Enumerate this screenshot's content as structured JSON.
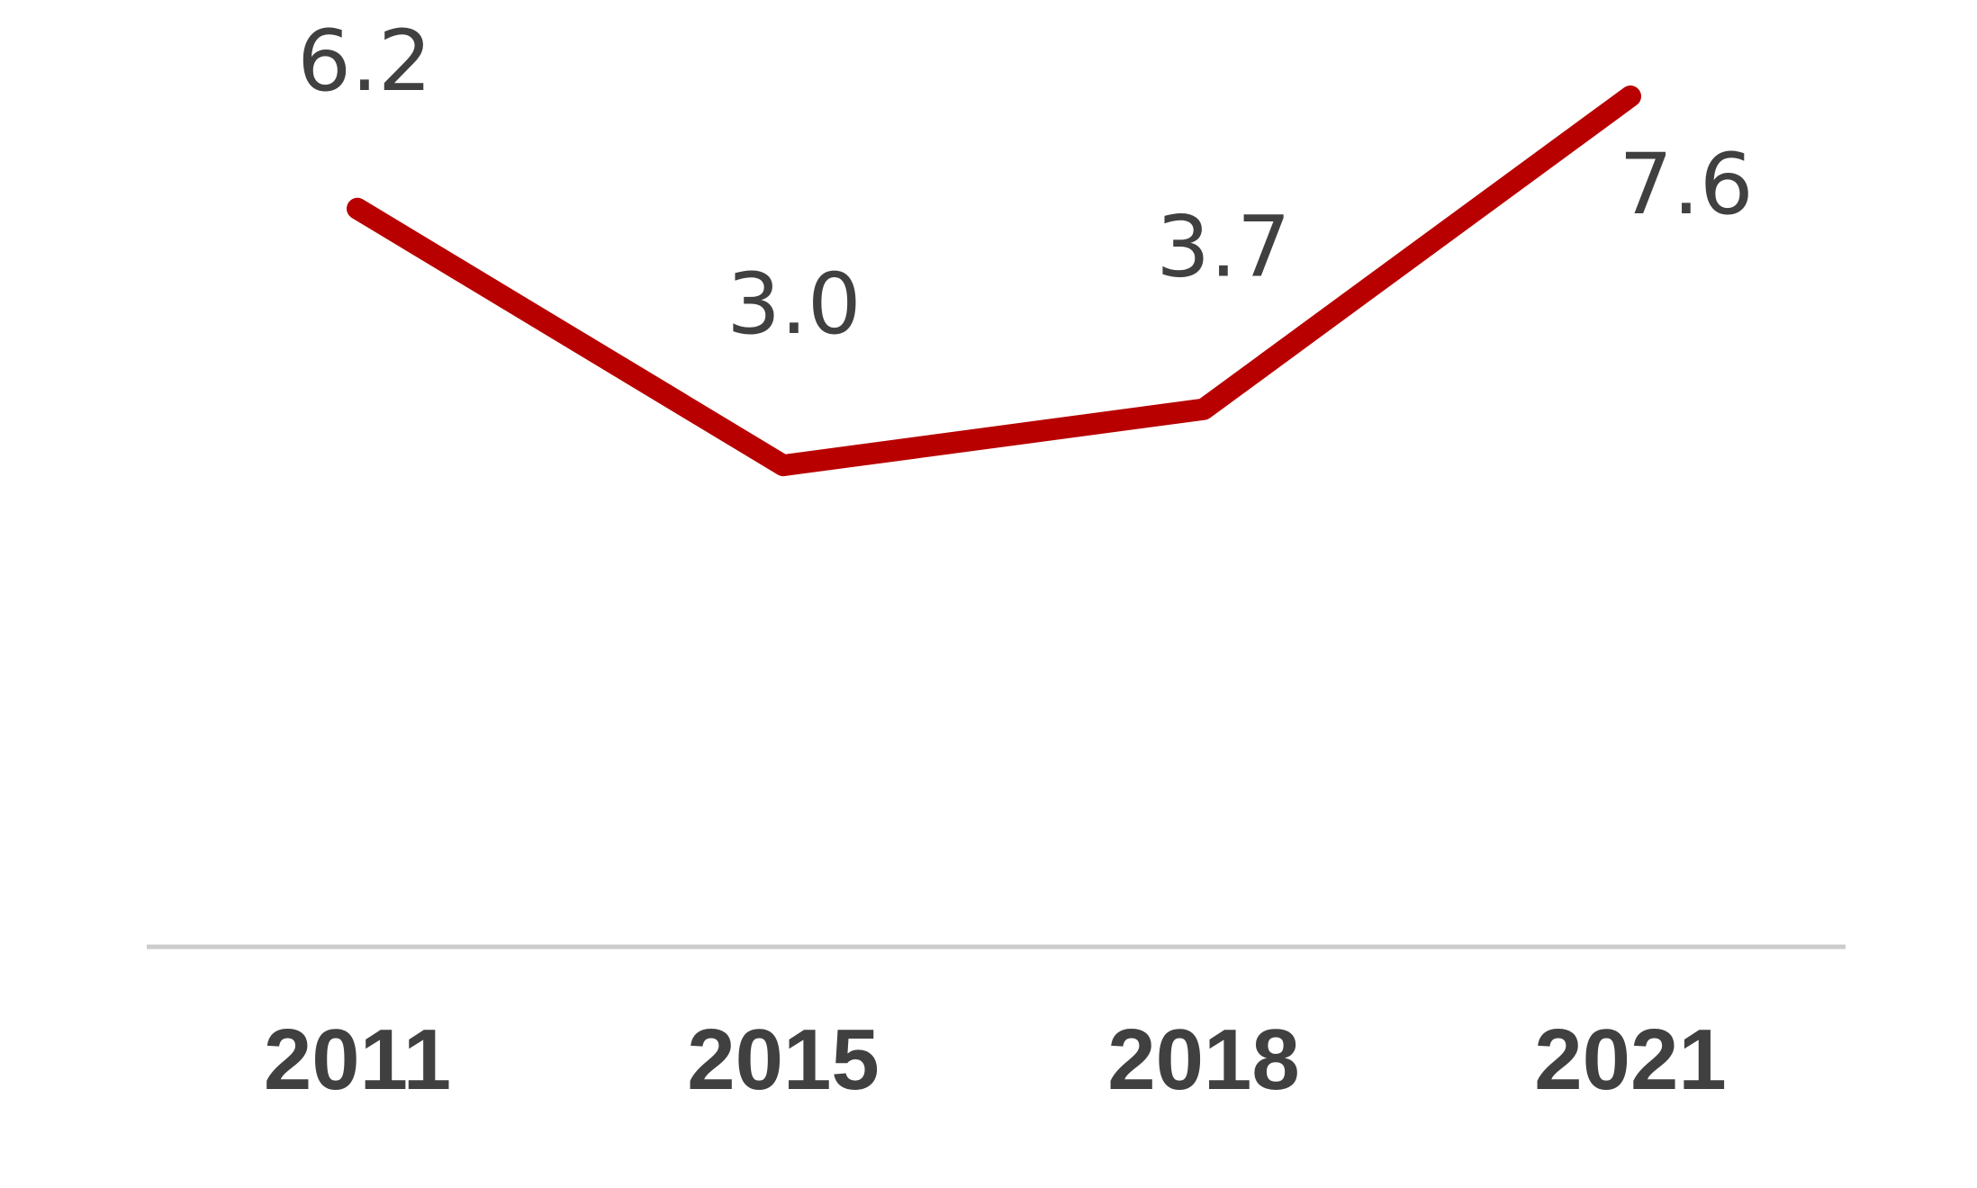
{
  "colors": {
    "line": "#b80000",
    "axis": "#cccccc",
    "text": "#404040",
    "background": "#ffffff"
  },
  "chart_data": {
    "type": "line",
    "categories": [
      "2011",
      "2015",
      "2018",
      "2021"
    ],
    "series": [
      {
        "values": [
          6.2,
          3.0,
          3.7,
          7.6
        ],
        "data_labels": [
          "6.2",
          "3.0",
          "3.7",
          "7.6"
        ]
      }
    ],
    "title": "",
    "xlabel": "",
    "ylabel": "",
    "ylim": [
      -3.0,
      8.8
    ],
    "grid": false,
    "legend": "none"
  }
}
